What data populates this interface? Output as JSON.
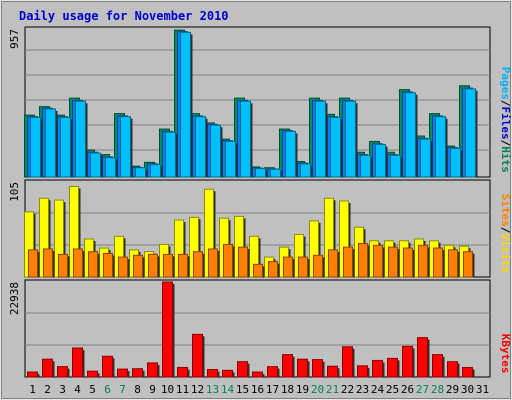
{
  "chart_data": [
    {
      "type": "bar",
      "title": "Daily usage for November 2010",
      "categories": [
        "1",
        "2",
        "3",
        "4",
        "5",
        "6",
        "7",
        "8",
        "9",
        "10",
        "11",
        "12",
        "13",
        "14",
        "15",
        "16",
        "17",
        "18",
        "19",
        "20",
        "21",
        "22",
        "23",
        "24",
        "25",
        "26",
        "27",
        "28",
        "29",
        "30",
        "31"
      ],
      "weekend_days": [
        "6",
        "7",
        "13",
        "14",
        "20",
        "21",
        "27",
        "28"
      ],
      "ymax_label": "957",
      "ylim": [
        0,
        957
      ],
      "side_label": [
        "Pages",
        "Files",
        "Hits"
      ],
      "series": [
        {
          "name": "Hits",
          "color": "#009060",
          "values": [
            400,
            455,
            400,
            510,
            175,
            145,
            410,
            70,
            95,
            310,
            950,
            410,
            350,
            245,
            510,
            65,
            60,
            310,
            100,
            510,
            405,
            510,
            160,
            230,
            160,
            565,
            265,
            410,
            200,
            590,
            0
          ]
        },
        {
          "name": "Files",
          "color": "#0080ff",
          "values": [
            390,
            445,
            390,
            495,
            160,
            130,
            395,
            62,
            85,
            295,
            940,
            395,
            340,
            235,
            495,
            58,
            52,
            300,
            90,
            495,
            390,
            495,
            145,
            215,
            145,
            550,
            250,
            395,
            190,
            575,
            0
          ]
        },
        {
          "name": "Pages",
          "color": "#00c0ff",
          "values": [
            385,
            440,
            385,
            490,
            155,
            125,
            390,
            60,
            80,
            290,
            935,
            390,
            335,
            230,
            490,
            55,
            50,
            295,
            85,
            490,
            385,
            490,
            140,
            210,
            140,
            545,
            245,
            390,
            185,
            570,
            0
          ]
        }
      ]
    },
    {
      "type": "bar",
      "ymax_label": "105",
      "ylim": [
        0,
        105
      ],
      "side_label": [
        "Sites",
        "Visits"
      ],
      "series": [
        {
          "name": "Visits",
          "color": "#ffff00",
          "values": [
            72,
            87,
            85,
            100,
            42,
            32,
            45,
            30,
            28,
            36,
            63,
            66,
            97,
            65,
            67,
            45,
            22,
            33,
            47,
            62,
            87,
            84,
            55,
            40,
            40,
            40,
            42,
            40,
            35,
            34,
            0
          ]
        },
        {
          "name": "Sites",
          "color": "#ff8000",
          "values": [
            30,
            31,
            25,
            31,
            28,
            26,
            22,
            24,
            25,
            25,
            25,
            28,
            31,
            36,
            33,
            14,
            17,
            22,
            22,
            24,
            30,
            33,
            37,
            35,
            33,
            32,
            35,
            32,
            30,
            28,
            0
          ]
        }
      ]
    },
    {
      "type": "bar",
      "ymax_label": "22938",
      "ylim": [
        0,
        22938
      ],
      "side_label": [
        "KBytes"
      ],
      "series": [
        {
          "name": "KBytes",
          "color": "#ff0000",
          "values": [
            1200,
            4300,
            2500,
            7000,
            1400,
            5000,
            1900,
            2000,
            3400,
            23000,
            2300,
            10300,
            1800,
            1600,
            3700,
            1200,
            2500,
            5400,
            4300,
            4200,
            2600,
            7300,
            2700,
            4000,
            4500,
            7400,
            9500,
            5400,
            3700,
            2300,
            0
          ]
        }
      ]
    }
  ]
}
